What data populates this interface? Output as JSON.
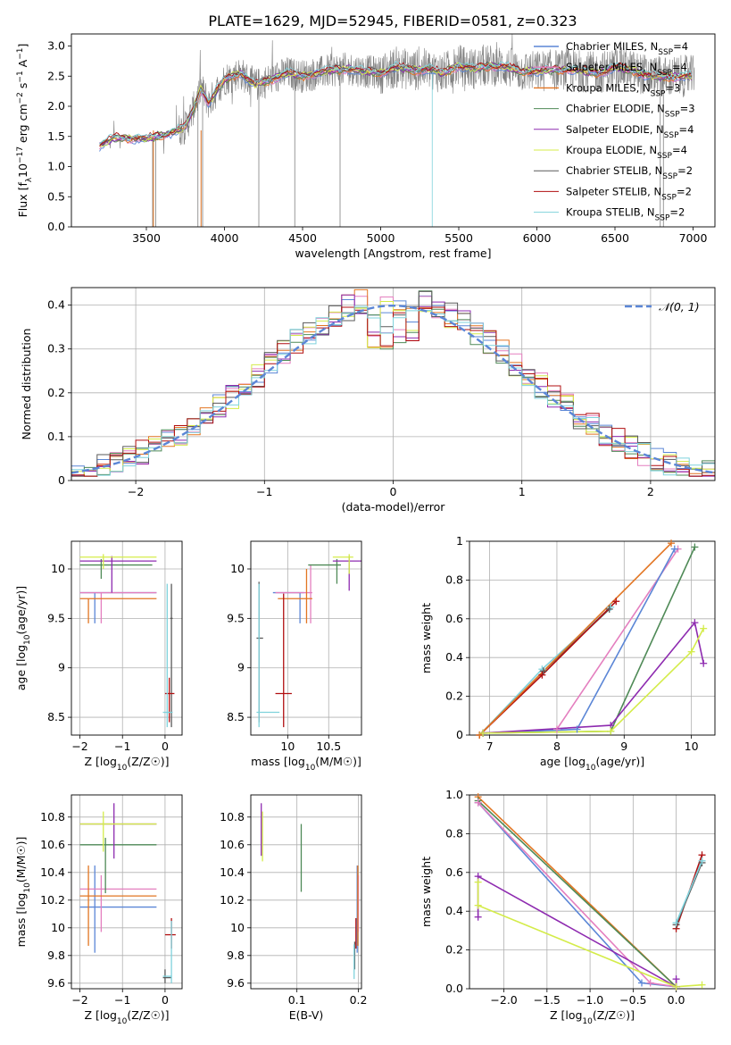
{
  "figure_title": "PLATE=1629, MJD=52945, FIBERID=0581, z=0.323",
  "colors": {
    "chabrier_miles": "#5b86d6",
    "salpeter_miles": "#e47fbf",
    "kroupa_miles": "#e27522",
    "chabrier_elodie": "#4f8a57",
    "salpeter_elodie": "#8e2bb0",
    "kroupa_elodie": "#d4ec4a",
    "chabrier_stelib": "#5a5a5a",
    "salpeter_stelib": "#b10f10",
    "kroupa_stelib": "#7fd2dc",
    "data_spectrum": "#808080",
    "normal_curve": "#5b86d6"
  },
  "legend_entries": [
    {
      "key": "chabrier_miles",
      "name": "Chabrier MILES, N",
      "sub": "SSP",
      "suffix": "=4"
    },
    {
      "key": "salpeter_miles",
      "name": "Salpeter MILES, N",
      "sub": "SSP",
      "suffix": "=4"
    },
    {
      "key": "kroupa_miles",
      "name": "Kroupa MILES, N",
      "sub": "SSP",
      "suffix": "=3"
    },
    {
      "key": "chabrier_elodie",
      "name": "Chabrier ELODIE, N",
      "sub": "SSP",
      "suffix": "=3"
    },
    {
      "key": "salpeter_elodie",
      "name": "Salpeter ELODIE, N",
      "sub": "SSP",
      "suffix": "=4"
    },
    {
      "key": "kroupa_elodie",
      "name": "Kroupa ELODIE, N",
      "sub": "SSP",
      "suffix": "=4"
    },
    {
      "key": "chabrier_stelib",
      "name": "Chabrier STELIB, N",
      "sub": "SSP",
      "suffix": "=2"
    },
    {
      "key": "salpeter_stelib",
      "name": "Salpeter STELIB, N",
      "sub": "SSP",
      "suffix": "=2"
    },
    {
      "key": "kroupa_stelib",
      "name": "Kroupa STELIB, N",
      "sub": "SSP",
      "suffix": "=2"
    }
  ],
  "chart_data": [
    {
      "id": "spectrum",
      "type": "line",
      "xlabel": "wavelength [Angstrom, rest frame]",
      "ylabel": "Flux [f_λ 10^-17 erg cm^-2 s^-1 A^-1]",
      "ylabel_parts": {
        "a": "Flux [f",
        "b": "λ",
        "c": "10",
        "d": "−17",
        "e": " erg cm",
        "f": "−2",
        "g": " s",
        "h": "−1",
        "i": " A",
        "j": "−1",
        "k": "]"
      },
      "xlim": [
        3020,
        7140
      ],
      "ylim": [
        0,
        3.2
      ],
      "xticks": [
        3500,
        4000,
        4500,
        5000,
        5500,
        6000,
        6500,
        7000
      ],
      "yticks": [
        0.0,
        0.5,
        1.0,
        1.5,
        2.0,
        2.5,
        3.0
      ],
      "grid": false,
      "legend_position": "top-right",
      "continuum_model": {
        "x": [
          3200,
          3300,
          3400,
          3500,
          3600,
          3700,
          3750,
          3800,
          3850,
          3900,
          3950,
          4000,
          4100,
          4200,
          4300,
          4400,
          4500,
          4600,
          4700,
          4800,
          4900,
          5000,
          5100,
          5200,
          5300,
          5400,
          5500,
          5600,
          5700,
          5800,
          5900,
          6000,
          6100,
          6200,
          6300,
          6400,
          6500,
          6600,
          6700,
          6800,
          6900,
          7000
        ],
        "y": [
          1.35,
          1.48,
          1.47,
          1.46,
          1.52,
          1.6,
          1.65,
          1.95,
          2.3,
          2.05,
          2.25,
          2.45,
          2.55,
          2.35,
          2.45,
          2.55,
          2.5,
          2.55,
          2.6,
          2.62,
          2.58,
          2.55,
          2.65,
          2.6,
          2.62,
          2.55,
          2.68,
          2.62,
          2.68,
          2.65,
          2.58,
          2.58,
          2.6,
          2.62,
          2.58,
          2.55,
          2.65,
          2.6,
          2.52,
          2.48,
          2.5,
          2.5
        ]
      }
    },
    {
      "id": "residuals",
      "type": "histogram",
      "xlabel": "(data-model)/error",
      "ylabel": "Normed distribution",
      "xlim": [
        -2.5,
        2.5
      ],
      "ylim": [
        0,
        0.44
      ],
      "xticks": [
        -2,
        -1,
        0,
        1,
        2
      ],
      "yticks": [
        0.0,
        0.1,
        0.2,
        0.3,
        0.4
      ],
      "grid": true,
      "legend": "𝒩(0, 1)",
      "legend_position": "top-right",
      "bins": [
        -2.5,
        -2.4,
        -2.3,
        -2.2,
        -2.1,
        -2.0,
        -1.9,
        -1.8,
        -1.7,
        -1.6,
        -1.5,
        -1.4,
        -1.3,
        -1.2,
        -1.1,
        -1.0,
        -0.9,
        -0.8,
        -0.7,
        -0.6,
        -0.5,
        -0.4,
        -0.3,
        -0.2,
        -0.1,
        0.0,
        0.1,
        0.2,
        0.3,
        0.4,
        0.5,
        0.6,
        0.7,
        0.8,
        0.9,
        1.0,
        1.1,
        1.2,
        1.3,
        1.4,
        1.5,
        1.6,
        1.7,
        1.8,
        1.9,
        2.0,
        2.1,
        2.2,
        2.3,
        2.4,
        2.5
      ]
    },
    {
      "id": "age_vs_Z",
      "type": "errorbar",
      "xlabel": "Z [log10(Z/Z☉)]",
      "ylabel": "age  [log10(age/yr)]",
      "xlim": [
        -2.2,
        0.4
      ],
      "ylim": [
        8.32,
        10.28
      ],
      "xticks": [
        -2,
        -1,
        0
      ],
      "yticks": [
        8.5,
        9.0,
        9.5,
        10.0
      ],
      "grid": true,
      "points": [
        {
          "s": "chabrier_miles",
          "x": -1.65,
          "y": 9.76,
          "xl": -2.0,
          "xh": -0.2,
          "yl": 9.45,
          "yh": 9.76
        },
        {
          "s": "salpeter_miles",
          "x": -1.5,
          "y": 9.76,
          "xl": -2.0,
          "xh": -0.2,
          "yl": 9.45,
          "yh": 9.76
        },
        {
          "s": "kroupa_miles",
          "x": -1.8,
          "y": 9.7,
          "xl": -2.0,
          "xh": -0.2,
          "yl": 9.45,
          "yh": 9.7
        },
        {
          "s": "chabrier_elodie",
          "x": -1.5,
          "y": 10.04,
          "xl": -2.0,
          "xh": -0.3,
          "yl": 9.9,
          "yh": 10.1
        },
        {
          "s": "salpeter_elodie",
          "x": -1.25,
          "y": 10.08,
          "xl": -2.0,
          "xh": -0.2,
          "yl": 9.76,
          "yh": 10.13
        },
        {
          "s": "kroupa_elodie",
          "x": -1.45,
          "y": 10.12,
          "xl": -2.0,
          "xh": -0.2,
          "yl": 10.0,
          "yh": 10.15
        },
        {
          "s": "chabrier_stelib",
          "x": 0.15,
          "y": 9.5,
          "xl": 0.12,
          "xh": 0.18,
          "yl": 8.4,
          "yh": 9.85
        },
        {
          "s": "salpeter_stelib",
          "x": 0.1,
          "y": 8.74,
          "xl": 0.0,
          "xh": 0.22,
          "yl": 8.45,
          "yh": 8.9
        },
        {
          "s": "kroupa_stelib",
          "x": 0.05,
          "y": 8.55,
          "xl": -0.05,
          "xh": 0.18,
          "yl": 8.4,
          "yh": 9.85
        }
      ]
    },
    {
      "id": "age_vs_mass",
      "type": "errorbar",
      "xlabel": "mass [log10(M/M☉)]",
      "ylabel": "",
      "xlim": [
        9.55,
        10.9
      ],
      "ylim": [
        8.32,
        10.28
      ],
      "xticks": [
        10.0,
        10.5
      ],
      "yticks": [
        8.5,
        9.0,
        9.5,
        10.0
      ],
      "grid": true,
      "points": [
        {
          "s": "chabrier_miles",
          "x": 10.15,
          "y": 9.76,
          "xl": 9.82,
          "xh": 10.2,
          "yl": 9.45,
          "yh": 9.76
        },
        {
          "s": "salpeter_miles",
          "x": 10.28,
          "y": 9.76,
          "xl": 9.85,
          "xh": 10.3,
          "yl": 9.45,
          "yh": 10.04
        },
        {
          "s": "kroupa_miles",
          "x": 10.23,
          "y": 9.7,
          "xl": 9.88,
          "xh": 10.3,
          "yl": 9.45,
          "yh": 10.0
        },
        {
          "s": "chabrier_elodie",
          "x": 10.6,
          "y": 10.04,
          "xl": 10.25,
          "xh": 10.65,
          "yl": 9.85,
          "yh": 10.1
        },
        {
          "s": "salpeter_elodie",
          "x": 10.75,
          "y": 10.08,
          "xl": 10.55,
          "xh": 10.9,
          "yl": 9.78,
          "yh": 10.13
        },
        {
          "s": "kroupa_elodie",
          "x": 10.75,
          "y": 10.12,
          "xl": 10.55,
          "xh": 10.8,
          "yl": 9.95,
          "yh": 10.15
        },
        {
          "s": "chabrier_stelib",
          "x": 9.65,
          "y": 9.3,
          "xl": 9.62,
          "xh": 9.7,
          "yl": 8.45,
          "yh": 9.87
        },
        {
          "s": "salpeter_stelib",
          "x": 9.95,
          "y": 8.74,
          "xl": 9.85,
          "xh": 10.05,
          "yl": 8.4,
          "yh": 9.75
        },
        {
          "s": "kroupa_stelib",
          "x": 9.65,
          "y": 8.55,
          "xl": 9.62,
          "xh": 9.9,
          "yl": 8.4,
          "yh": 9.85
        }
      ]
    },
    {
      "id": "massweight_vs_age",
      "type": "line",
      "xlabel": "age  [log10(age/yr)]",
      "ylabel": "mass weight",
      "xlim": [
        6.7,
        10.35
      ],
      "ylim": [
        0.0,
        1.0
      ],
      "xticks": [
        7,
        8,
        9,
        10
      ],
      "yticks": [
        0.0,
        0.2,
        0.4,
        0.6,
        0.8,
        1.0
      ],
      "grid": true,
      "series": [
        {
          "s": "kroupa_stelib",
          "x": [
            6.85,
            7.78,
            8.8
          ],
          "y": [
            0.0,
            0.34,
            0.66
          ]
        },
        {
          "s": "chabrier_stelib",
          "x": [
            6.85,
            7.8,
            8.78
          ],
          "y": [
            0.0,
            0.33,
            0.65
          ]
        },
        {
          "s": "salpeter_stelib",
          "x": [
            6.85,
            7.78,
            8.88
          ],
          "y": [
            0.0,
            0.31,
            0.69
          ]
        },
        {
          "s": "kroupa_miles",
          "x": [
            6.85,
            9.7
          ],
          "y": [
            0.0,
            0.99
          ]
        },
        {
          "s": "salpeter_miles",
          "x": [
            6.9,
            8.0,
            9.8
          ],
          "y": [
            0.01,
            0.03,
            0.96
          ]
        },
        {
          "s": "chabrier_miles",
          "x": [
            6.9,
            8.3,
            9.75
          ],
          "y": [
            0.01,
            0.03,
            0.96
          ]
        },
        {
          "s": "chabrier_elodie",
          "x": [
            6.9,
            8.8,
            10.05
          ],
          "y": [
            0.01,
            0.02,
            0.97
          ]
        },
        {
          "s": "salpeter_elodie",
          "x": [
            6.9,
            8.8,
            10.05,
            10.18
          ],
          "y": [
            0.01,
            0.05,
            0.58,
            0.37
          ]
        },
        {
          "s": "kroupa_elodie",
          "x": [
            6.9,
            8.8,
            10.0,
            10.18
          ],
          "y": [
            0.01,
            0.02,
            0.43,
            0.55
          ]
        }
      ]
    },
    {
      "id": "mass_vs_Z",
      "type": "errorbar",
      "xlabel": "Z [log10(Z/Z☉)]",
      "ylabel": "mass [log10(M/M☉)]",
      "xlim": [
        -2.2,
        0.4
      ],
      "ylim": [
        9.56,
        10.96
      ],
      "xticks": [
        -2,
        -1,
        0
      ],
      "yticks": [
        9.6,
        9.8,
        10.0,
        10.2,
        10.4,
        10.6,
        10.8
      ],
      "grid": true,
      "points": [
        {
          "s": "chabrier_miles",
          "x": -1.65,
          "y": 10.15,
          "xl": -2.0,
          "xh": -0.2,
          "yl": 9.82,
          "yh": 10.45
        },
        {
          "s": "salpeter_miles",
          "x": -1.5,
          "y": 10.28,
          "xl": -2.0,
          "xh": -0.2,
          "yl": 9.97,
          "yh": 10.38
        },
        {
          "s": "kroupa_miles",
          "x": -1.8,
          "y": 10.23,
          "xl": -2.0,
          "xh": -0.2,
          "yl": 9.87,
          "yh": 10.45
        },
        {
          "s": "chabrier_elodie",
          "x": -1.4,
          "y": 10.6,
          "xl": -2.0,
          "xh": -0.2,
          "yl": 10.25,
          "yh": 10.65
        },
        {
          "s": "salpeter_elodie",
          "x": -1.2,
          "y": 10.75,
          "xl": -2.0,
          "xh": -0.2,
          "yl": 10.5,
          "yh": 10.9
        },
        {
          "s": "kroupa_elodie",
          "x": -1.45,
          "y": 10.75,
          "xl": -2.0,
          "xh": -0.2,
          "yl": 10.55,
          "yh": 10.84
        },
        {
          "s": "chabrier_stelib",
          "x": 0.0,
          "y": 9.64,
          "xl": -0.05,
          "xh": 0.15,
          "yl": 9.6,
          "yh": 9.7
        },
        {
          "s": "salpeter_stelib",
          "x": 0.15,
          "y": 9.95,
          "xl": 0.0,
          "xh": 0.25,
          "yl": 9.85,
          "yh": 10.07
        },
        {
          "s": "kroupa_stelib",
          "x": 0.15,
          "y": 9.65,
          "xl": -0.05,
          "xh": 0.15,
          "yl": 9.6,
          "yh": 10.05
        }
      ]
    },
    {
      "id": "mass_vs_EBV",
      "type": "errorbar",
      "xlabel": "E(B-V)",
      "ylabel": "",
      "xlim": [
        0.025,
        0.205
      ],
      "ylim": [
        9.56,
        10.96
      ],
      "xticks": [
        0.1,
        0.2
      ],
      "yticks": [
        9.6,
        9.8,
        10.0,
        10.2,
        10.4,
        10.6,
        10.8
      ],
      "grid": true,
      "points": [
        {
          "s": "chabrier_miles",
          "x": 0.198,
          "y": 10.15,
          "xl": 0.198,
          "xh": 0.198,
          "yl": 9.82,
          "yh": 10.45
        },
        {
          "s": "salpeter_miles",
          "x": 0.2,
          "y": 10.28,
          "xl": 0.2,
          "xh": 0.2,
          "yl": 9.97,
          "yh": 10.38
        },
        {
          "s": "kroupa_miles",
          "x": 0.199,
          "y": 10.23,
          "xl": 0.199,
          "xh": 0.199,
          "yl": 9.87,
          "yh": 10.45
        },
        {
          "s": "chabrier_elodie",
          "x": 0.107,
          "y": 10.5,
          "xl": 0.107,
          "xh": 0.107,
          "yl": 10.26,
          "yh": 10.75
        },
        {
          "s": "salpeter_elodie",
          "x": 0.042,
          "y": 10.75,
          "xl": 0.042,
          "xh": 0.042,
          "yl": 10.52,
          "yh": 10.9
        },
        {
          "s": "kroupa_elodie",
          "x": 0.044,
          "y": 10.7,
          "xl": 0.044,
          "xh": 0.044,
          "yl": 10.48,
          "yh": 10.84
        },
        {
          "s": "chabrier_stelib",
          "x": 0.194,
          "y": 9.8,
          "xl": 0.194,
          "xh": 0.194,
          "yl": 9.7,
          "yh": 9.9
        },
        {
          "s": "salpeter_stelib",
          "x": 0.196,
          "y": 9.95,
          "xl": 0.196,
          "xh": 0.196,
          "yl": 9.85,
          "yh": 10.07
        },
        {
          "s": "kroupa_stelib",
          "x": 0.193,
          "y": 9.75,
          "xl": 0.193,
          "xh": 0.193,
          "yl": 9.63,
          "yh": 9.88
        }
      ]
    },
    {
      "id": "massweight_vs_Z",
      "type": "line",
      "xlabel": "Z [log10(Z/Z☉)]",
      "ylabel": "mass weight",
      "xlim": [
        -2.4,
        0.45
      ],
      "ylim": [
        0.0,
        1.0
      ],
      "xticks": [
        -2.0,
        -1.5,
        -1.0,
        -0.5,
        0.0
      ],
      "yticks": [
        0.0,
        0.2,
        0.4,
        0.6,
        0.8,
        1.0
      ],
      "grid": true,
      "series": [
        {
          "s": "kroupa_miles",
          "x": [
            -2.3,
            0.0
          ],
          "y": [
            0.99,
            0.01
          ]
        },
        {
          "s": "chabrier_elodie",
          "x": [
            -2.3,
            0.0
          ],
          "y": [
            0.97,
            0.01
          ]
        },
        {
          "s": "chabrier_miles",
          "x": [
            -2.3,
            -0.4,
            0.0
          ],
          "y": [
            0.96,
            0.03,
            0.01
          ]
        },
        {
          "s": "salpeter_miles",
          "x": [
            -2.3,
            -0.3,
            0.0
          ],
          "y": [
            0.96,
            0.03,
            0.01
          ]
        },
        {
          "s": "salpeter_elodie",
          "x": [
            -2.3,
            -2.3,
            0.0,
            0.0
          ],
          "y": [
            0.37,
            0.58,
            0.01,
            0.05
          ]
        },
        {
          "s": "kroupa_elodie",
          "x": [
            -2.3,
            -2.3,
            0.0,
            0.3
          ],
          "y": [
            0.55,
            0.43,
            0.01,
            0.02
          ]
        },
        {
          "s": "salpeter_stelib",
          "x": [
            0.0,
            0.3
          ],
          "y": [
            0.31,
            0.69
          ]
        },
        {
          "s": "chabrier_stelib",
          "x": [
            0.0,
            0.3
          ],
          "y": [
            0.33,
            0.65
          ]
        },
        {
          "s": "kroupa_stelib",
          "x": [
            0.0,
            0.3
          ],
          "y": [
            0.34,
            0.66
          ]
        }
      ]
    }
  ]
}
